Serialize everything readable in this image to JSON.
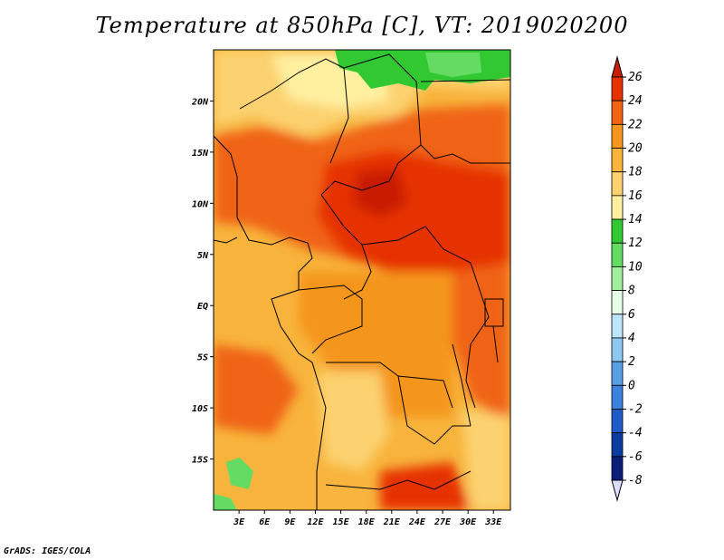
{
  "title": "Temperature at 850hPa [C], VT: 2019020200",
  "footer": "GrADS: IGES/COLA",
  "map": {
    "lon_range": [
      0,
      35
    ],
    "lat_range": [
      -20,
      25
    ],
    "lat_ticks": [
      {
        "value": 20,
        "label": "20N"
      },
      {
        "value": 15,
        "label": "15N"
      },
      {
        "value": 10,
        "label": "10N"
      },
      {
        "value": 5,
        "label": "5N"
      },
      {
        "value": 0,
        "label": "EQ"
      },
      {
        "value": -5,
        "label": "5S"
      },
      {
        "value": -10,
        "label": "10S"
      },
      {
        "value": -15,
        "label": "15S"
      }
    ],
    "lon_ticks": [
      {
        "value": 3,
        "label": "3E"
      },
      {
        "value": 6,
        "label": "6E"
      },
      {
        "value": 9,
        "label": "9E"
      },
      {
        "value": 12,
        "label": "12E"
      },
      {
        "value": 15,
        "label": "15E"
      },
      {
        "value": 18,
        "label": "18E"
      },
      {
        "value": 21,
        "label": "21E"
      },
      {
        "value": 24,
        "label": "24E"
      },
      {
        "value": 27,
        "label": "27E"
      },
      {
        "value": 30,
        "label": "30E"
      },
      {
        "value": 33,
        "label": "33E"
      }
    ]
  },
  "colorbar": {
    "levels": [
      {
        "label": "26",
        "color": "#c81e00"
      },
      {
        "label": "24",
        "color": "#e63200"
      },
      {
        "label": "22",
        "color": "#f06414"
      },
      {
        "label": "20",
        "color": "#f5961e"
      },
      {
        "label": "18",
        "color": "#f8b43c"
      },
      {
        "label": "16",
        "color": "#fcd270"
      },
      {
        "label": "14",
        "color": "#fff0a0"
      },
      {
        "label": "12",
        "color": "#32c832"
      },
      {
        "label": "10",
        "color": "#64dc64"
      },
      {
        "label": "8",
        "color": "#a0f0a0"
      },
      {
        "label": "6",
        "color": "#e6ffe6"
      },
      {
        "label": "4",
        "color": "#bee6fa"
      },
      {
        "label": "2",
        "color": "#8cc8f0"
      },
      {
        "label": "0",
        "color": "#5aa0e6"
      },
      {
        "label": "-2",
        "color": "#3c82dc"
      },
      {
        "label": "-4",
        "color": "#1e5ac8"
      },
      {
        "label": "-6",
        "color": "#0a3ca0"
      },
      {
        "label": "-8",
        "color": "#0a1e78"
      }
    ],
    "top_color": "#c81e00",
    "bottom_color": "#dcdcff"
  }
}
